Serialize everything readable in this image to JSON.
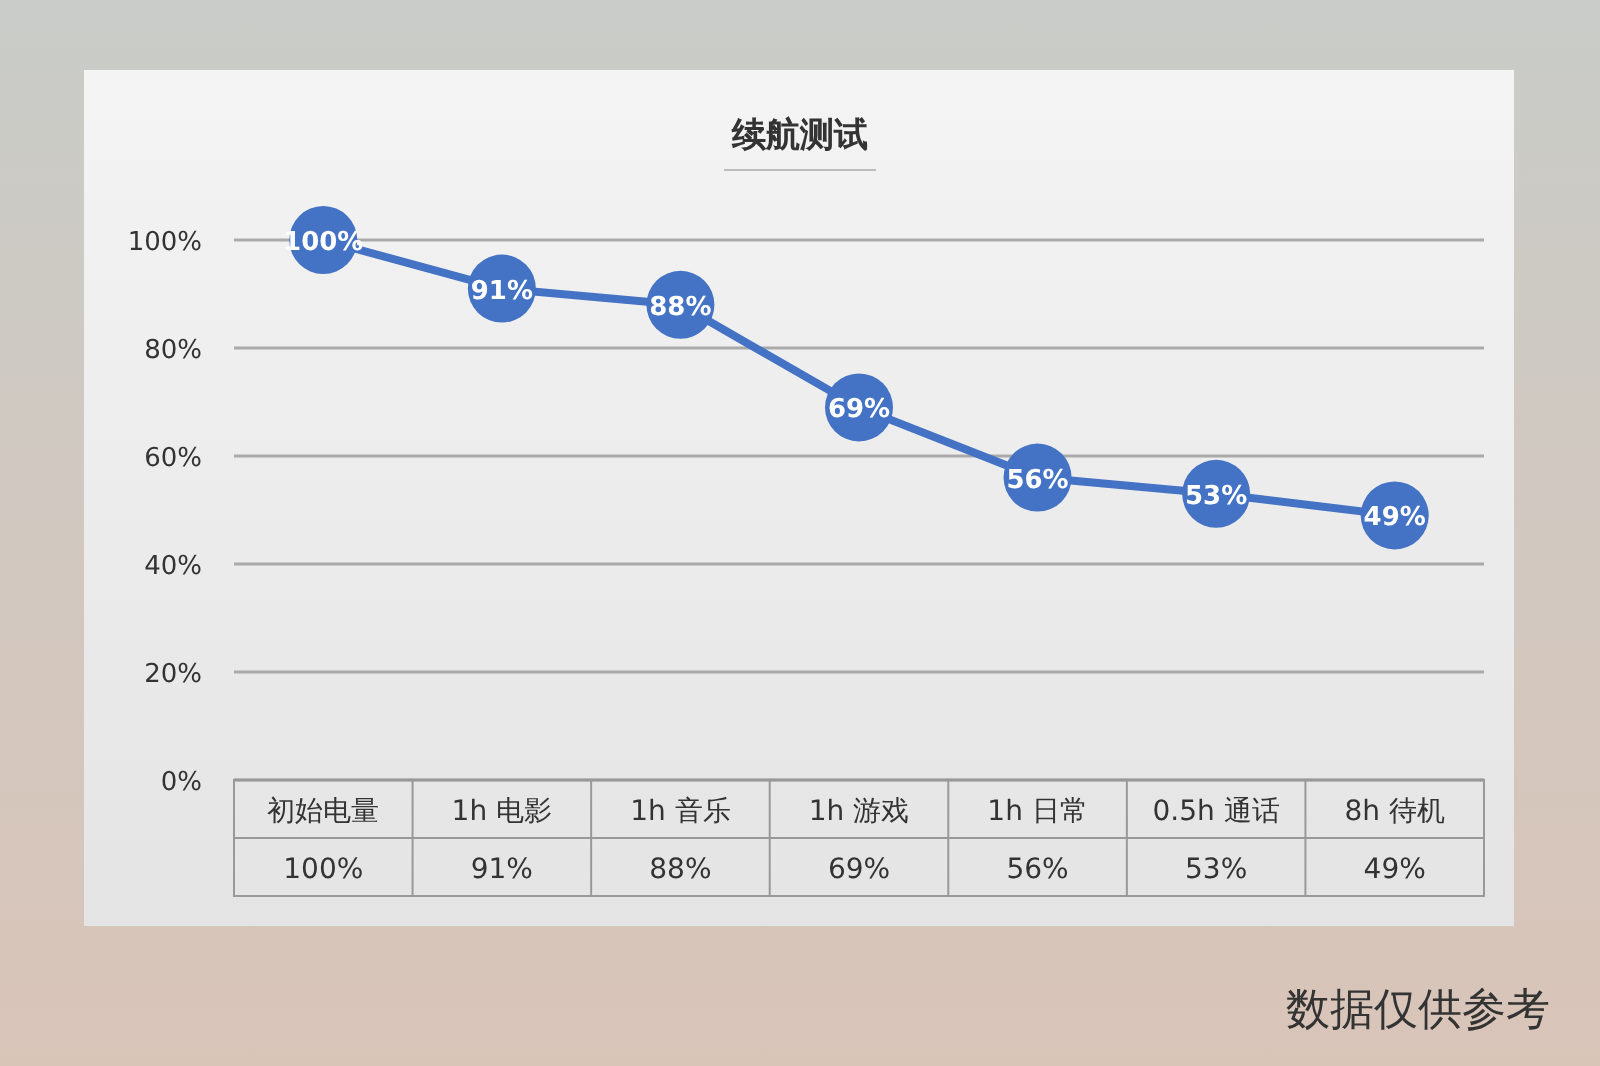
{
  "chart_data": {
    "type": "line",
    "title": "续航测试",
    "categories": [
      "初始电量",
      "1h 电影",
      "1h 音乐",
      "1h 游戏",
      "1h 日常",
      "0.5h 通话",
      "8h 待机"
    ],
    "series": [
      {
        "color": "#4472c4",
        "values": [
          100,
          91,
          88,
          69,
          56,
          53,
          49
        ],
        "value_labels": [
          "100%",
          "91%",
          "88%",
          "69%",
          "56%",
          "53%",
          "49%"
        ]
      }
    ],
    "ylim": [
      0,
      100
    ],
    "yticks": [
      {
        "value": 0,
        "label": "0%"
      },
      {
        "value": 20,
        "label": "20%"
      },
      {
        "value": 40,
        "label": "40%"
      },
      {
        "value": 60,
        "label": "60%"
      },
      {
        "value": 80,
        "label": "80%"
      },
      {
        "value": 100,
        "label": "100%"
      }
    ],
    "grid": "y",
    "marker": "circle",
    "line_style": "solid",
    "annotations": [
      "数据仅供参考"
    ]
  }
}
